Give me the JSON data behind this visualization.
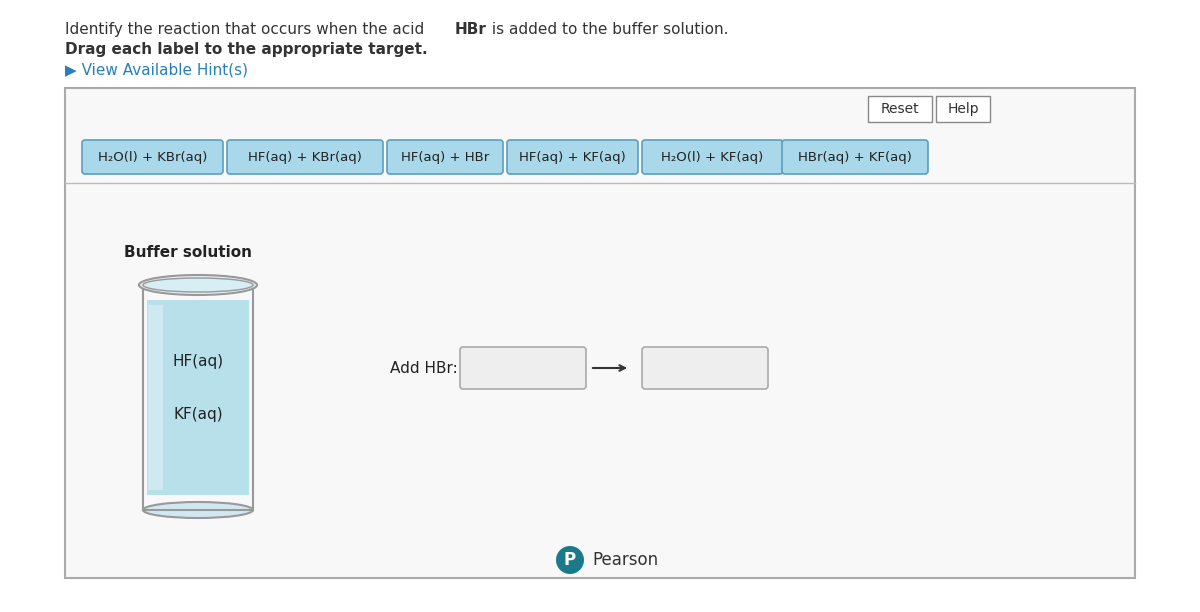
{
  "title_text": "Identify the reaction that occurs when the acid HBr is added to the buffer solution.",
  "title_bold_part": "HBr",
  "subtitle": "Drag each label to the appropriate target.",
  "hint_text": "View Available Hint(s)",
  "reset_btn": "Reset",
  "help_btn": "Help",
  "labels": [
    "H₂O(l) + KBr(aq)",
    "HF(aq) + KBr(aq)",
    "HF(aq) + HBr",
    "HF(aq) + KF(aq)",
    "H₂O(l) + KF(aq)",
    "HBr(aq) + KF(aq)"
  ],
  "label_bg": "#a8d8ea",
  "label_border": "#5a9fc0",
  "buffer_label": "Buffer solution",
  "hf_text": "HF(aq)",
  "kf_text": "KF(aq)",
  "add_hbr_text": "Add HBr:",
  "pearson_text": "Pearson",
  "bg_color": "#f5f5f5",
  "outer_border_color": "#cccccc",
  "box_color": "#f0f0f0",
  "box_border": "#aaaaaa",
  "liquid_color": "#b8e0ea",
  "liquid_light": "#d8eef5",
  "beaker_border": "#999999"
}
